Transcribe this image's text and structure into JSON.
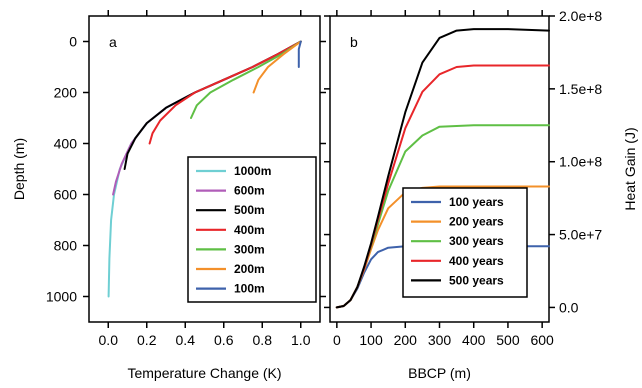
{
  "chart_data": [
    {
      "type": "line",
      "panel_label": "a",
      "xlabel": "Temperature Change (K)",
      "ylabel": "Depth (m)",
      "xlim": [
        -0.1,
        1.1
      ],
      "ylim": [
        1100,
        -100
      ],
      "y_inverted": true,
      "xticks": [
        0.0,
        0.2,
        0.4,
        0.6,
        0.8,
        1.0
      ],
      "xtick_labels": [
        "0.0",
        "0.2",
        "0.4",
        "0.6",
        "0.8",
        "1.0"
      ],
      "yticks": [
        0,
        200,
        400,
        600,
        800,
        1000
      ],
      "ytick_labels": [
        "0",
        "200",
        "400",
        "600",
        "800",
        "1000"
      ],
      "legend_position": "bottom-right",
      "series": [
        {
          "name": "1000m",
          "color": "#6fcfd3",
          "x": [
            1.0,
            0.88,
            0.75,
            0.6,
            0.45,
            0.3,
            0.2,
            0.12,
            0.06,
            0.03,
            0.015,
            0.006,
            0.002
          ],
          "y": [
            0,
            50,
            100,
            150,
            200,
            260,
            320,
            400,
            500,
            600,
            700,
            850,
            1000
          ]
        },
        {
          "name": "600m",
          "color": "#b05db8",
          "x": [
            1.0,
            0.88,
            0.75,
            0.6,
            0.45,
            0.3,
            0.2,
            0.12,
            0.07,
            0.04,
            0.025
          ],
          "y": [
            0,
            50,
            100,
            150,
            200,
            260,
            320,
            400,
            480,
            550,
            600
          ]
        },
        {
          "name": "500m",
          "color": "#000000",
          "x": [
            1.0,
            0.88,
            0.75,
            0.6,
            0.45,
            0.3,
            0.2,
            0.14,
            0.1,
            0.085
          ],
          "y": [
            0,
            50,
            100,
            150,
            200,
            260,
            320,
            380,
            440,
            500
          ]
        },
        {
          "name": "400m",
          "color": "#e8262a",
          "x": [
            1.0,
            0.88,
            0.75,
            0.6,
            0.45,
            0.35,
            0.27,
            0.23,
            0.215
          ],
          "y": [
            0,
            50,
            100,
            150,
            200,
            250,
            310,
            360,
            400
          ]
        },
        {
          "name": "300m",
          "color": "#5fbf45",
          "x": [
            1.0,
            0.9,
            0.78,
            0.65,
            0.53,
            0.46,
            0.43
          ],
          "y": [
            0,
            50,
            100,
            150,
            200,
            250,
            300
          ]
        },
        {
          "name": "200m",
          "color": "#f3902a",
          "x": [
            1.0,
            0.91,
            0.83,
            0.78,
            0.755
          ],
          "y": [
            0,
            50,
            100,
            150,
            200
          ]
        },
        {
          "name": "100m",
          "color": "#3e62ab",
          "x": [
            1.0,
            0.99,
            0.99,
            0.99
          ],
          "y": [
            0,
            30,
            60,
            100
          ]
        }
      ]
    },
    {
      "type": "line",
      "panel_label": "b",
      "xlabel": "BBCP (m)",
      "ylabel": "Heat Gain (J)",
      "xlim": [
        -20,
        620
      ],
      "ylim": [
        -10000000.0,
        200000000.0
      ],
      "xticks": [
        0,
        100,
        200,
        300,
        400,
        500,
        600
      ],
      "xtick_labels": [
        "0",
        "100",
        "200",
        "300",
        "400",
        "500",
        "600"
      ],
      "yticks": [
        0,
        50000000.0,
        100000000.0,
        150000000.0,
        200000000.0
      ],
      "ytick_labels": [
        "0.0",
        "5.0e+7",
        "1.0e+8",
        "1.5e+8",
        "2.0e+8"
      ],
      "legend_position": "bottom-right",
      "series": [
        {
          "name": "100 years",
          "color": "#3e62ab",
          "x": [
            0,
            20,
            40,
            60,
            80,
            100,
            120,
            150,
            200,
            300,
            400,
            500,
            620
          ],
          "y": [
            0,
            1000000.0,
            5000000.0,
            13000000.0,
            24000000.0,
            33000000.0,
            38000000.0,
            41000000.0,
            42000000.0,
            42000000.0,
            42000000.0,
            42000000.0,
            42000000.0
          ]
        },
        {
          "name": "200 years",
          "color": "#f3902a",
          "x": [
            0,
            20,
            40,
            60,
            80,
            100,
            120,
            150,
            200,
            250,
            300,
            400,
            500,
            620
          ],
          "y": [
            0,
            1000000.0,
            5000000.0,
            14000000.0,
            26000000.0,
            40000000.0,
            53000000.0,
            68000000.0,
            79000000.0,
            82000000.0,
            83000000.0,
            83000000.0,
            83000000.0,
            83000000.0
          ]
        },
        {
          "name": "300 years",
          "color": "#5fbf45",
          "x": [
            0,
            20,
            40,
            60,
            80,
            100,
            120,
            150,
            200,
            250,
            300,
            400,
            500,
            620
          ],
          "y": [
            0,
            1000000.0,
            5000000.0,
            14000000.0,
            27000000.0,
            42000000.0,
            57000000.0,
            80000000.0,
            107000000.0,
            118000000.0,
            124000000.0,
            125000000.0,
            125000000.0,
            125000000.0
          ]
        },
        {
          "name": "400 years",
          "color": "#e8262a",
          "x": [
            0,
            20,
            40,
            60,
            80,
            100,
            120,
            150,
            200,
            250,
            300,
            350,
            400,
            500,
            620
          ],
          "y": [
            0,
            1000000.0,
            5000000.0,
            14000000.0,
            27000000.0,
            43000000.0,
            60000000.0,
            85000000.0,
            123000000.0,
            148000000.0,
            160000000.0,
            165000000.0,
            166000000.0,
            166000000.0,
            166000000.0
          ]
        },
        {
          "name": "500 years",
          "color": "#000000",
          "x": [
            0,
            20,
            40,
            60,
            80,
            100,
            120,
            150,
            200,
            250,
            300,
            350,
            400,
            500,
            620
          ],
          "y": [
            0,
            1000000.0,
            5000000.0,
            14000000.0,
            28000000.0,
            44000000.0,
            62000000.0,
            90000000.0,
            134000000.0,
            168000000.0,
            185000000.0,
            190000000.0,
            191000000.0,
            191000000.0,
            190000000.0
          ]
        }
      ]
    }
  ]
}
